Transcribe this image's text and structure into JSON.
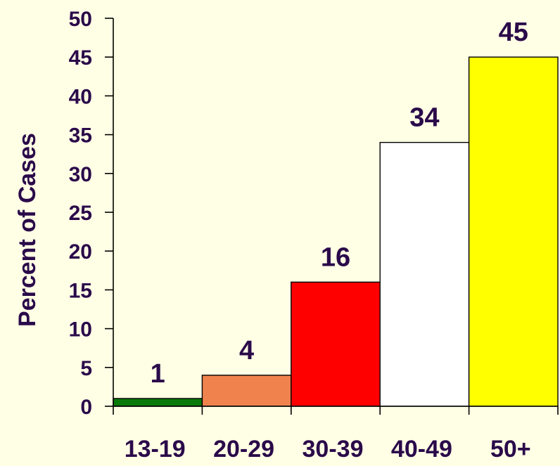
{
  "chart_data": {
    "type": "bar",
    "categories": [
      "13-19",
      "20-29",
      "30-39",
      "40-49",
      "50+"
    ],
    "values": [
      1,
      4,
      16,
      34,
      45
    ],
    "data_labels": [
      "1",
      "4",
      "16",
      "34",
      "45"
    ],
    "bar_colors": [
      "#0a7a0a",
      "#f0824e",
      "#ff0000",
      "#ffffff",
      "#ffff00"
    ],
    "title": "",
    "xlabel": "",
    "ylabel": "Percent of Cases",
    "ylim": [
      0,
      50
    ],
    "yticks": [
      0,
      5,
      10,
      15,
      20,
      25,
      30,
      35,
      40,
      45,
      50
    ],
    "grid": false,
    "legend": "none",
    "text_color": "#2a0a4a",
    "background_color": "#ffffe5"
  }
}
